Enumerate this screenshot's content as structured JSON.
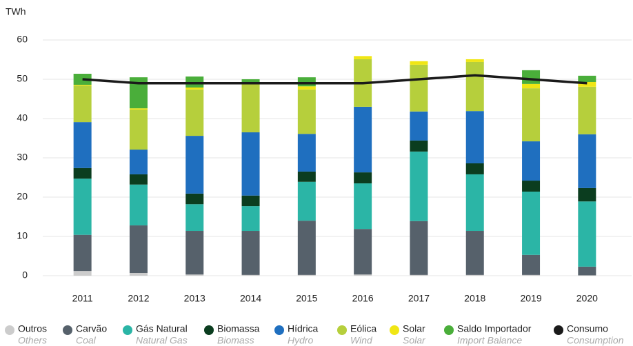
{
  "chart_data": {
    "type": "bar",
    "stacked": true,
    "y_label": "TWh",
    "categories": [
      "2011",
      "2012",
      "2013",
      "2014",
      "2015",
      "2016",
      "2017",
      "2018",
      "2019",
      "2020"
    ],
    "ylim": [
      0,
      60
    ],
    "yticks": [
      0,
      10,
      20,
      30,
      40,
      50,
      60
    ],
    "grid": true,
    "legend": "bottom",
    "series": [
      {
        "name": "Outros",
        "translation": "Others",
        "color": "#cccccc",
        "values": [
          1.2,
          0.7,
          0.3,
          0.2,
          0.2,
          0.3,
          0.2,
          0.2,
          0.2,
          0.1
        ]
      },
      {
        "name": "Carvão",
        "translation": "Coal",
        "color": "#56616b",
        "values": [
          9.2,
          12.1,
          11.1,
          11.2,
          13.8,
          11.6,
          13.7,
          11.2,
          5.1,
          2.2
        ]
      },
      {
        "name": "Gás Natural",
        "translation": "Natural Gas",
        "color": "#2bb5a6",
        "values": [
          14.3,
          10.4,
          6.8,
          6.3,
          9.9,
          11.6,
          17.7,
          14.4,
          16.1,
          16.6
        ]
      },
      {
        "name": "Biomassa",
        "translation": "Biomass",
        "color": "#0b3d1f",
        "values": [
          2.7,
          2.6,
          2.7,
          2.7,
          2.6,
          2.8,
          2.8,
          2.8,
          2.8,
          3.4
        ]
      },
      {
        "name": "Hídrica",
        "translation": "Hydro",
        "color": "#1f6fbf",
        "values": [
          11.7,
          6.3,
          14.7,
          16.1,
          9.6,
          16.7,
          7.4,
          13.3,
          10.0,
          13.7
        ]
      },
      {
        "name": "Eólica",
        "translation": "Wind",
        "color": "#b6cf3c",
        "values": [
          9.3,
          10.2,
          11.8,
          12.3,
          11.3,
          12.1,
          11.9,
          12.5,
          13.5,
          12.1
        ]
      },
      {
        "name": "Solar",
        "translation": "Solar",
        "color": "#f0e614",
        "values": [
          0.2,
          0.3,
          0.5,
          0.1,
          0.8,
          0.8,
          0.9,
          0.7,
          1.1,
          1.2
        ]
      },
      {
        "name": "Saldo Importador",
        "translation": "Import Balance",
        "color": "#4aae3a",
        "values": [
          2.8,
          7.9,
          2.8,
          1.1,
          2.3,
          0,
          0,
          0,
          3.5,
          1.6
        ]
      },
      {
        "name": "Consumo",
        "translation": "Consumption",
        "color": "#1a1a1a",
        "type": "line",
        "values": [
          50,
          49,
          49,
          49,
          49,
          49,
          50,
          51,
          50,
          49
        ]
      }
    ]
  }
}
